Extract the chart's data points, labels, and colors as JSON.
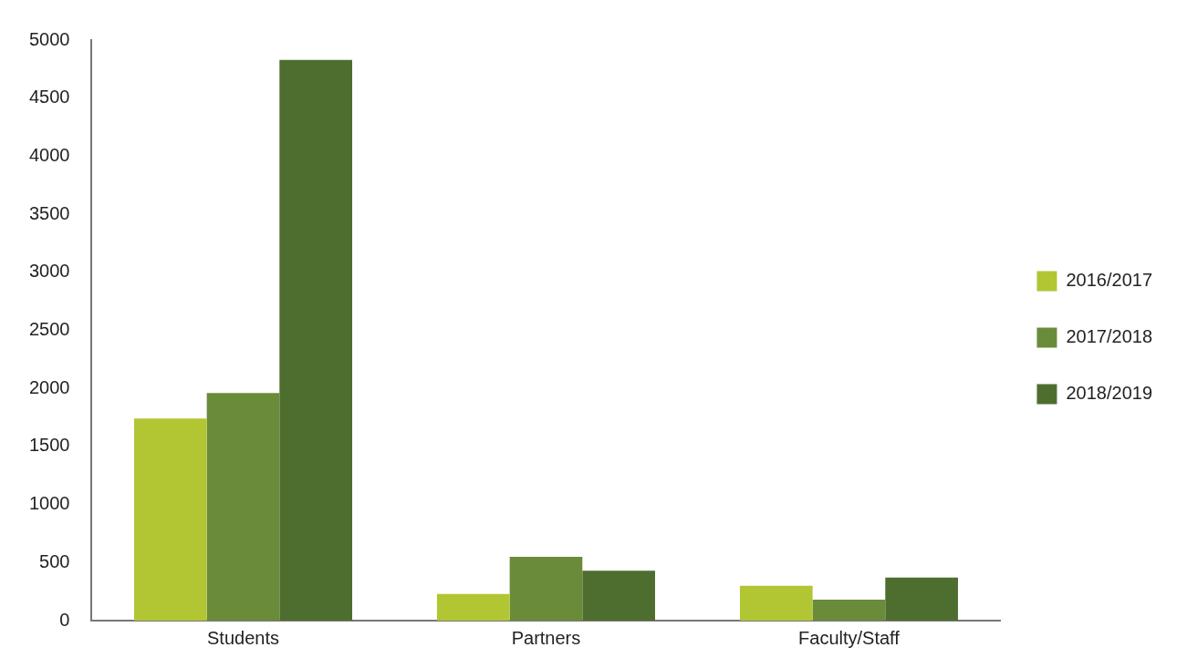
{
  "chart_data": {
    "type": "bar",
    "categories": [
      "Students",
      "Partners",
      "Faculty/Staff"
    ],
    "series": [
      {
        "name": "2016/2017",
        "color": "#b2c634",
        "values": [
          1740,
          230,
          300
        ]
      },
      {
        "name": "2017/2018",
        "color": "#6a8c3a",
        "values": [
          1960,
          550,
          180
        ]
      },
      {
        "name": "2018/2019",
        "color": "#4e6e30",
        "values": [
          4830,
          430,
          370
        ]
      }
    ],
    "ylim": [
      0,
      5000
    ],
    "yticks": [
      0,
      500,
      1000,
      1500,
      2000,
      2500,
      3000,
      3500,
      4000,
      4500,
      5000
    ],
    "grid": false,
    "legend": "right"
  }
}
